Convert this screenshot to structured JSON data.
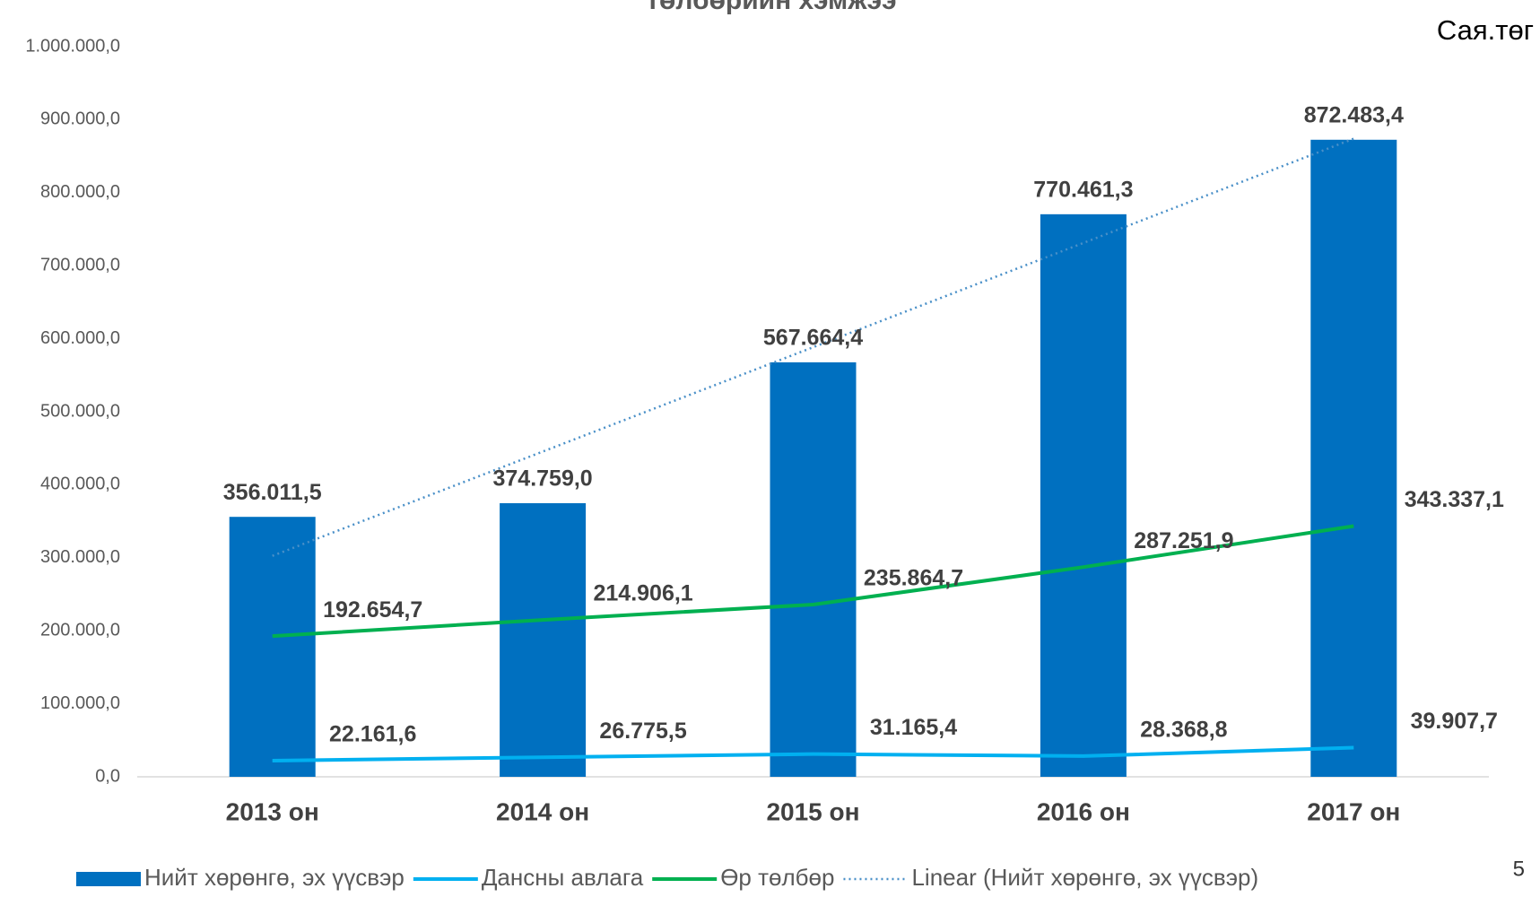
{
  "chart_data": {
    "type": "bar_line",
    "title": "төлбөрийн хэмжээ",
    "unit_label": "Сая.төг",
    "page_number": "5",
    "categories": [
      "2013 он",
      "2014 он",
      "2015 он",
      "2016 он",
      "2017 он"
    ],
    "series": [
      {
        "name": "Нийт хөрөнгө, эх үүсвэр",
        "kind": "bar",
        "color": "#0070c0",
        "values": [
          356011.5,
          374759.0,
          567664.4,
          770461.3,
          872483.4
        ],
        "value_labels": [
          "356.011,5",
          "374.759,0",
          "567.664,4",
          "770.461,3",
          "872.483,4"
        ]
      },
      {
        "name": "Дансны авлага",
        "kind": "line",
        "color": "#00b0f0",
        "values": [
          22161.6,
          26775.5,
          31165.4,
          28368.8,
          39907.7
        ],
        "value_labels": [
          "22.161,6",
          "26.775,5",
          "31.165,4",
          "28.368,8",
          "39.907,7"
        ]
      },
      {
        "name": "Өр төлбөр",
        "kind": "line",
        "color": "#00b050",
        "values": [
          192654.7,
          214906.1,
          235864.7,
          287251.9,
          343337.1
        ],
        "value_labels": [
          "192.654,7",
          "214.906,1",
          "235.864,7",
          "287.251,9",
          "343.337,1"
        ]
      },
      {
        "name": "Linear (Нийт хөрөнгө, эх үүсвэр)",
        "kind": "trend",
        "color": "#4a90c8",
        "values": [
          302547,
          445411,
          588276,
          731141,
          874005
        ]
      }
    ],
    "ylim": [
      0,
      1000000
    ],
    "yticks": [
      {
        "value": 0,
        "label": "0,0"
      },
      {
        "value": 100000,
        "label": "100.000,0"
      },
      {
        "value": 200000,
        "label": "200.000,0"
      },
      {
        "value": 300000,
        "label": "300.000,0"
      },
      {
        "value": 400000,
        "label": "400.000,0"
      },
      {
        "value": 500000,
        "label": "500.000,0"
      },
      {
        "value": 600000,
        "label": "600.000,0"
      },
      {
        "value": 700000,
        "label": "700.000,0"
      },
      {
        "value": 800000,
        "label": "800.000,0"
      },
      {
        "value": 900000,
        "label": "900.000,0"
      },
      {
        "value": 1000000,
        "label": "1.000.000,0"
      }
    ],
    "grid": false,
    "legend": "bottom"
  }
}
